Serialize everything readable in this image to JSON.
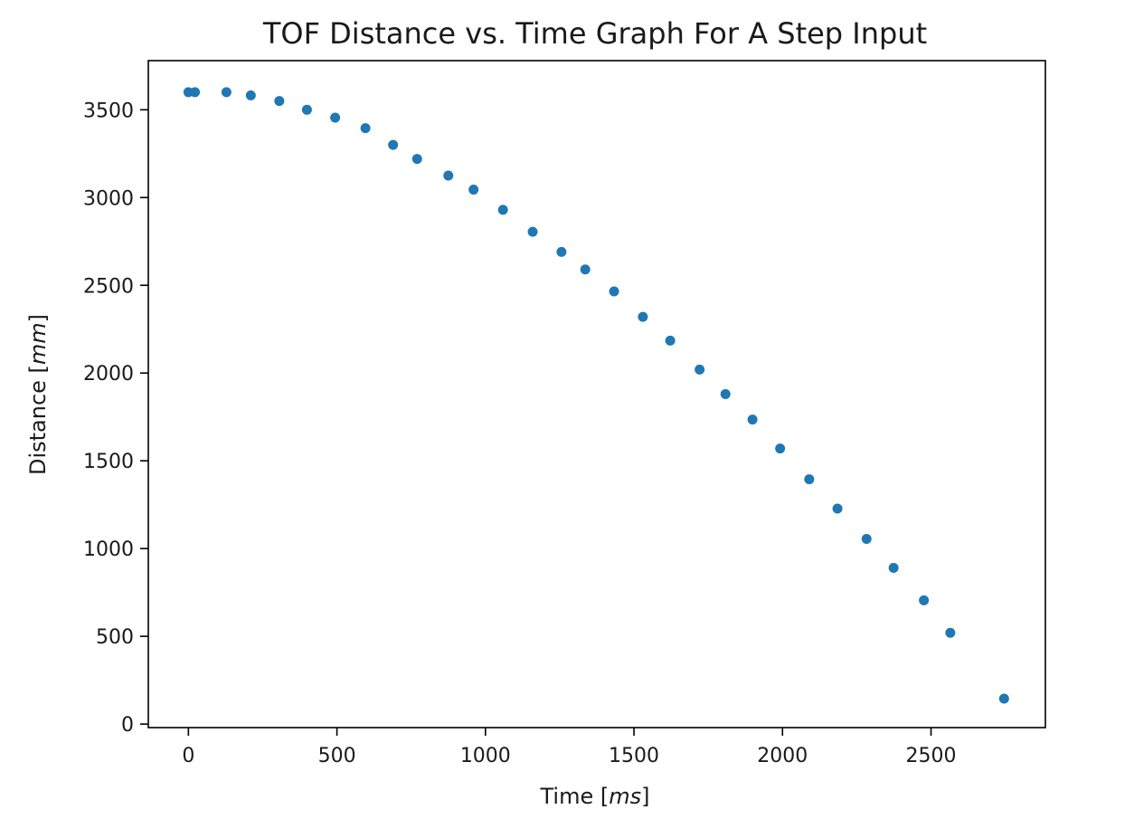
{
  "chart_data": {
    "type": "scatter",
    "title": "TOF Distance vs. Time Graph For A Step Input",
    "xlabel": {
      "prefix": "Time [",
      "unit": "ms",
      "suffix": "]"
    },
    "ylabel": {
      "prefix": "Distance [",
      "unit": "mm",
      "suffix": "]"
    },
    "xlim": [
      -135,
      2885
    ],
    "ylim": [
      -20,
      3780
    ],
    "xticks": [
      0,
      500,
      1000,
      1500,
      2000,
      2500
    ],
    "yticks": [
      0,
      500,
      1000,
      1500,
      2000,
      2500,
      3000,
      3500
    ],
    "xtick_labels": [
      "0",
      "500",
      "1000",
      "1500",
      "2000",
      "2500"
    ],
    "ytick_labels": [
      "0",
      "500",
      "1000",
      "1500",
      "2000",
      "2500",
      "3000",
      "3500"
    ],
    "marker_color": "#1f77b4",
    "grid": false,
    "points": [
      {
        "x": 0,
        "y": 3600
      },
      {
        "x": 22,
        "y": 3600
      },
      {
        "x": 128,
        "y": 3600
      },
      {
        "x": 210,
        "y": 3582
      },
      {
        "x": 306,
        "y": 3550
      },
      {
        "x": 399,
        "y": 3500
      },
      {
        "x": 494,
        "y": 3455
      },
      {
        "x": 596,
        "y": 3395
      },
      {
        "x": 689,
        "y": 3300
      },
      {
        "x": 770,
        "y": 3220
      },
      {
        "x": 875,
        "y": 3125
      },
      {
        "x": 960,
        "y": 3045
      },
      {
        "x": 1059,
        "y": 2930
      },
      {
        "x": 1159,
        "y": 2805
      },
      {
        "x": 1256,
        "y": 2690
      },
      {
        "x": 1336,
        "y": 2590
      },
      {
        "x": 1433,
        "y": 2465
      },
      {
        "x": 1530,
        "y": 2320
      },
      {
        "x": 1622,
        "y": 2185
      },
      {
        "x": 1721,
        "y": 2020
      },
      {
        "x": 1808,
        "y": 1880
      },
      {
        "x": 1899,
        "y": 1735
      },
      {
        "x": 1992,
        "y": 1570
      },
      {
        "x": 2090,
        "y": 1395
      },
      {
        "x": 2185,
        "y": 1228
      },
      {
        "x": 2283,
        "y": 1055
      },
      {
        "x": 2374,
        "y": 890
      },
      {
        "x": 2476,
        "y": 705
      },
      {
        "x": 2565,
        "y": 520
      },
      {
        "x": 2746,
        "y": 145
      }
    ]
  }
}
